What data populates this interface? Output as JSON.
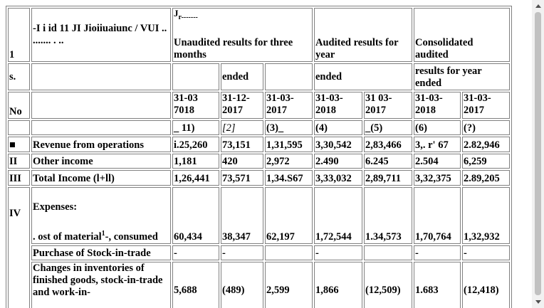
{
  "header": {
    "row1_no": "1",
    "garbled_title": "-I i id 11 JI Jioiiuaiunc / VUI .. ....... . ..",
    "jr_mark": "J",
    "jr_rest": "r-------",
    "unaudited": "Unaudited results for three months",
    "audited": "Audited results for year",
    "consolidated": "Consolidated audited",
    "s_label": "s.",
    "ended_1": "ended",
    "ended_2": "ended",
    "results_year_ended": "results for year ended",
    "no_label": "No",
    "dates": [
      "31-03 7018",
      "31-12- 2017",
      "31-03- 2017",
      "31-03- 2018",
      "31 03- 2017",
      "31-03- 2018",
      "31-03- 2017"
    ],
    "col_nums": [
      "_ 11)",
      "[2]",
      "(3)_",
      "(4)",
      "_(5)",
      "(6)",
      "(?)"
    ]
  },
  "rows": [
    {
      "sno": "■",
      "label": "Revenue from operations",
      "values": [
        "i.25,260",
        "73,151",
        "1,31,595",
        "3,30,542",
        "2,83,466",
        "3,. r' 67",
        "2.82,946"
      ]
    },
    {
      "sno": "II",
      "label": "Other income",
      "values": [
        "1,181",
        "420",
        "2,972",
        "2.490",
        "6.245",
        "2.504",
        "6,259"
      ]
    },
    {
      "sno": "III",
      "label": "Total Income (l+ll)",
      "values": [
        "1,26,441",
        "73,571",
        "1,34.S67",
        "3,33,032",
        "2,89,711",
        "3,32,375",
        "2.89,205"
      ]
    }
  ],
  "expenses": {
    "sno": "IV",
    "heading": "Expenses:",
    "material_pre": ". ost of material",
    "material_sup": "1",
    "material_post": "-, consumed",
    "material_values": [
      "60,434",
      "38,347",
      "62,197",
      "1,72,544",
      "1.34,573",
      "1,70,764",
      "1,32,932"
    ],
    "purchase_label": "Purchase of Stock-in-trade",
    "purchase_values": [
      "-",
      "-",
      "",
      "-",
      "",
      "-",
      "-"
    ],
    "changes_label": "Changes in inventories of finished goods, stock-in-trade and work-in-",
    "changes_values": [
      "5,688",
      "(489)",
      "2,599",
      "1,866",
      "(12,509)",
      "1.683",
      "(12,418)"
    ]
  }
}
